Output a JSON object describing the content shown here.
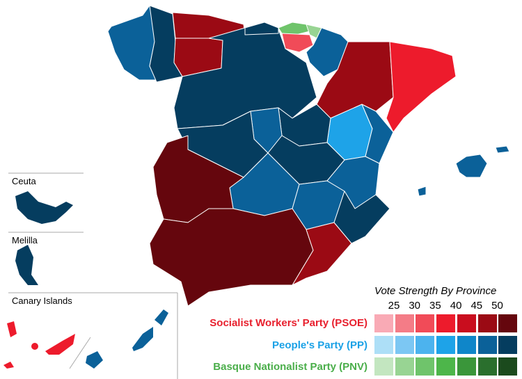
{
  "insets": {
    "ceuta": "Ceuta",
    "melilla": "Melilla",
    "canary": "Canary Islands"
  },
  "legend": {
    "title": "Vote Strength By Province",
    "ticks": [
      "25",
      "30",
      "35",
      "40",
      "45",
      "50"
    ],
    "parties": [
      {
        "name": "Socialist Workers' Party (PSOE)",
        "color": "#e8202e",
        "scale": [
          "#f9aab5",
          "#f47c87",
          "#f14b58",
          "#ed1b2c",
          "#c90d1e",
          "#9b0a14",
          "#65060d"
        ]
      },
      {
        "name": "People's Party (PP)",
        "color": "#1aa1e6",
        "scale": [
          "#addff7",
          "#7cc7f3",
          "#4cb3ee",
          "#1ea3e8",
          "#0f86c9",
          "#0b6199",
          "#053d5f"
        ]
      },
      {
        "name": "Basque Nationalist Party (PNV)",
        "color": "#4aae4a",
        "scale": [
          "#c3e6c0",
          "#98d493",
          "#6fc46b",
          "#4db64a",
          "#3a963a",
          "#2a6f2d",
          "#1b4a1d"
        ]
      }
    ]
  }
}
